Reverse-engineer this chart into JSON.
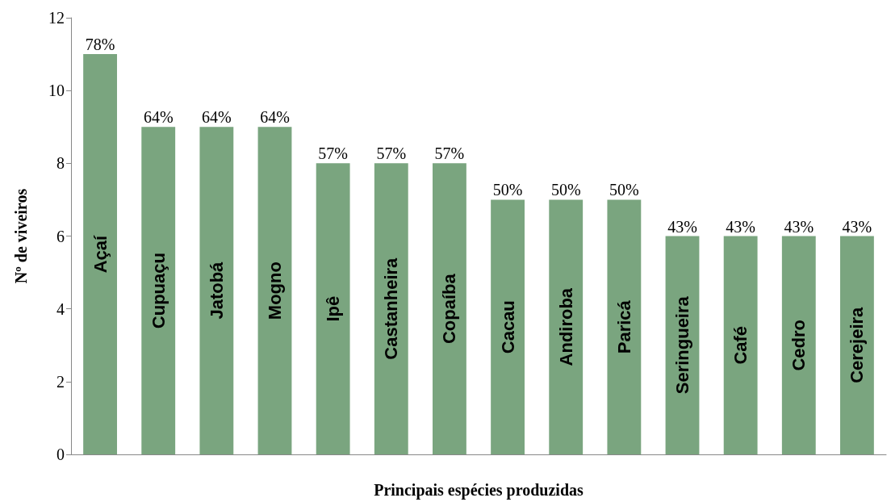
{
  "chart_data": {
    "type": "bar",
    "xlabel": "Principais espécies produzidas",
    "ylabel": "Nº de viveiros",
    "categories": [
      "Açaí",
      "Cupuaçu",
      "Jatobá",
      "Mogno",
      "Ipê",
      "Castanheira",
      "Copaíba",
      "Cacau",
      "Andiroba",
      "Paricá",
      "Seringueira",
      "Café",
      "Cedro",
      "Cerejeira"
    ],
    "values": [
      11,
      9,
      9,
      9,
      8,
      8,
      8,
      7,
      7,
      7,
      6,
      6,
      6,
      6
    ],
    "annotations": [
      {
        "text": "78%",
        "x": "Açaí",
        "y": 11
      },
      {
        "text": "64%",
        "x": "Cupuaçu",
        "y": 9
      },
      {
        "text": "64%",
        "x": "Jatobá",
        "y": 9
      },
      {
        "text": "64%",
        "x": "Mogno",
        "y": 9
      },
      {
        "text": "57%",
        "x": "Ipê",
        "y": 8
      },
      {
        "text": "57%",
        "x": "Castanheira",
        "y": 8
      },
      {
        "text": "57%",
        "x": "Copaíba",
        "y": 8
      },
      {
        "text": "50%",
        "x": "Cacau",
        "y": 7
      },
      {
        "text": "50%",
        "x": "Andiroba",
        "y": 7
      },
      {
        "text": "50%",
        "x": "Paricá",
        "y": 7
      },
      {
        "text": "43%",
        "x": "Seringueira",
        "y": 6
      },
      {
        "text": "43%",
        "x": "Café",
        "y": 6
      },
      {
        "text": "43%",
        "x": "Cedro",
        "y": 6
      },
      {
        "text": "43%",
        "x": "Cerejeira",
        "y": 6
      }
    ],
    "color": "#7aa57f",
    "ylim": [
      0,
      12
    ],
    "yticks": [
      0,
      2,
      4,
      6,
      8,
      10,
      12
    ],
    "grid": false
  }
}
